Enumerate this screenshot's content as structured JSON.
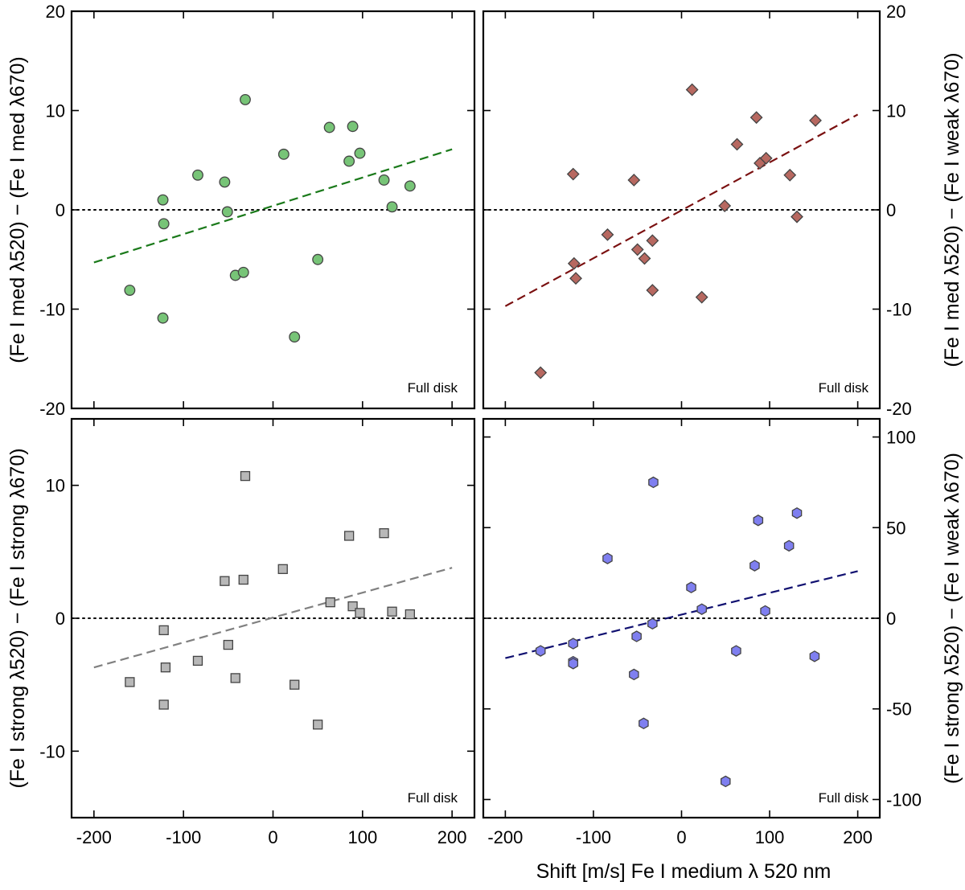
{
  "chart_data": [
    {
      "type": "scatter",
      "panel": "top-left",
      "ylabel": "(Fe I med λ520) − (Fe I med λ670)",
      "xlim": [
        -225,
        225
      ],
      "ylim": [
        -20,
        20
      ],
      "xticks": [
        -200,
        -100,
        0,
        100,
        200
      ],
      "yticks": [
        -20,
        -10,
        0,
        10,
        20
      ],
      "ytick_labels": [
        "-20",
        "-10",
        "0",
        "10",
        "20"
      ],
      "annotation": "Full disk",
      "marker": "circle",
      "color": "#77c477",
      "line_color": "#1b7a1b",
      "points": [
        {
          "x": -160,
          "y": -8.1
        },
        {
          "x": -123,
          "y": 1.0
        },
        {
          "x": -122,
          "y": -1.4
        },
        {
          "x": -123,
          "y": -10.9
        },
        {
          "x": -84,
          "y": 3.5
        },
        {
          "x": -54,
          "y": 2.8
        },
        {
          "x": -51,
          "y": -0.2
        },
        {
          "x": -42,
          "y": -6.6
        },
        {
          "x": -33,
          "y": -6.3
        },
        {
          "x": -31,
          "y": 11.1
        },
        {
          "x": 12,
          "y": 5.6
        },
        {
          "x": 24,
          "y": -12.8
        },
        {
          "x": 50,
          "y": -5.0
        },
        {
          "x": 63,
          "y": 8.3
        },
        {
          "x": 85,
          "y": 4.9
        },
        {
          "x": 89,
          "y": 8.4
        },
        {
          "x": 97,
          "y": 5.7
        },
        {
          "x": 124,
          "y": 3.0
        },
        {
          "x": 133,
          "y": 0.3
        },
        {
          "x": 153,
          "y": 2.4
        }
      ],
      "fit": {
        "x": [
          -200,
          200
        ],
        "y": [
          -5.3,
          6.1
        ]
      }
    },
    {
      "type": "scatter",
      "panel": "top-right",
      "ylabel": "(Fe I med λ520) − (Fe I weak λ670)",
      "xlim": [
        -225,
        225
      ],
      "ylim": [
        -20,
        20
      ],
      "xticks": [
        -200,
        -100,
        0,
        100,
        200
      ],
      "yticks": [
        -20,
        -10,
        0,
        10,
        20
      ],
      "ytick_labels": [
        "-20",
        "-10",
        "0",
        "10",
        "20"
      ],
      "annotation": "Full disk",
      "marker": "diamond",
      "color": "#b76860",
      "line_color": "#7a1010",
      "points": [
        {
          "x": -160,
          "y": -16.4
        },
        {
          "x": -123,
          "y": 3.6
        },
        {
          "x": -122,
          "y": -5.4
        },
        {
          "x": -120,
          "y": -6.9
        },
        {
          "x": -84,
          "y": -2.5
        },
        {
          "x": -54,
          "y": 3.0
        },
        {
          "x": -50,
          "y": -4.0
        },
        {
          "x": -42,
          "y": -4.9
        },
        {
          "x": -33,
          "y": -3.1
        },
        {
          "x": -33,
          "y": -8.1
        },
        {
          "x": 12,
          "y": 12.1
        },
        {
          "x": 23,
          "y": -8.8
        },
        {
          "x": 49,
          "y": 0.4
        },
        {
          "x": 63,
          "y": 6.6
        },
        {
          "x": 85,
          "y": 9.3
        },
        {
          "x": 89,
          "y": 4.7
        },
        {
          "x": 96,
          "y": 5.2
        },
        {
          "x": 123,
          "y": 3.5
        },
        {
          "x": 131,
          "y": -0.7
        },
        {
          "x": 152,
          "y": 9.0
        }
      ],
      "fit": {
        "x": [
          -200,
          200
        ],
        "y": [
          -9.7,
          9.6
        ]
      }
    },
    {
      "type": "scatter",
      "panel": "bottom-left",
      "ylabel": "(Fe I strong λ520) − (Fe I strong λ670)",
      "xlim": [
        -225,
        225
      ],
      "ylim": [
        -15,
        15
      ],
      "xticks": [
        -200,
        -100,
        0,
        100,
        200
      ],
      "xtick_labels": [
        "-200",
        "-100",
        "0",
        "100",
        "200"
      ],
      "yticks": [
        -10,
        0,
        10
      ],
      "ytick_labels": [
        "-10",
        "0",
        "10"
      ],
      "annotation": "Full disk",
      "marker": "square",
      "color": "#b8b8b8",
      "line_color": "#808080",
      "points": [
        {
          "x": -160,
          "y": -4.8
        },
        {
          "x": -122,
          "y": -0.9
        },
        {
          "x": -120,
          "y": -3.7
        },
        {
          "x": -122,
          "y": -6.5
        },
        {
          "x": -84,
          "y": -3.2
        },
        {
          "x": -54,
          "y": 2.8
        },
        {
          "x": -50,
          "y": -2.0
        },
        {
          "x": -42,
          "y": -4.5
        },
        {
          "x": -33,
          "y": 2.9
        },
        {
          "x": -31,
          "y": 10.7
        },
        {
          "x": 11,
          "y": 3.7
        },
        {
          "x": 24,
          "y": -5.0
        },
        {
          "x": 50,
          "y": -8.0
        },
        {
          "x": 64,
          "y": 1.2
        },
        {
          "x": 85,
          "y": 6.2
        },
        {
          "x": 89,
          "y": 0.9
        },
        {
          "x": 97,
          "y": 0.4
        },
        {
          "x": 124,
          "y": 6.4
        },
        {
          "x": 133,
          "y": 0.5
        },
        {
          "x": 153,
          "y": 0.3
        }
      ],
      "fit": {
        "x": [
          -200,
          200
        ],
        "y": [
          -3.7,
          3.8
        ]
      }
    },
    {
      "type": "scatter",
      "panel": "bottom-right",
      "ylabel": "(Fe I strong λ520) − (Fe I weak λ670)",
      "xlabel": "Shift [m/s] Fe I medium  λ 520 nm",
      "xlim": [
        -225,
        225
      ],
      "ylim": [
        -110,
        110
      ],
      "xticks": [
        -200,
        -100,
        0,
        100,
        200
      ],
      "xtick_labels": [
        "-200",
        "-100",
        "0",
        "100",
        "200"
      ],
      "yticks": [
        -100,
        -50,
        0,
        50,
        100
      ],
      "ytick_labels": [
        "-100",
        "-50",
        "0",
        "50",
        "100"
      ],
      "annotation": "Full disk",
      "marker": "hexagon",
      "color": "#7f7ff0",
      "line_color": "#101070",
      "points": [
        {
          "x": -160,
          "y": -18
        },
        {
          "x": -123,
          "y": -14
        },
        {
          "x": -123,
          "y": -24
        },
        {
          "x": -123,
          "y": -25
        },
        {
          "x": -84,
          "y": 33
        },
        {
          "x": -54,
          "y": -31
        },
        {
          "x": -51,
          "y": -10
        },
        {
          "x": -43,
          "y": -58
        },
        {
          "x": -33,
          "y": -3
        },
        {
          "x": -32,
          "y": 75
        },
        {
          "x": 11,
          "y": 17
        },
        {
          "x": 23,
          "y": 5
        },
        {
          "x": 50,
          "y": -90
        },
        {
          "x": 62,
          "y": -18
        },
        {
          "x": 83,
          "y": 29
        },
        {
          "x": 87,
          "y": 54
        },
        {
          "x": 95,
          "y": 4
        },
        {
          "x": 122,
          "y": 40
        },
        {
          "x": 131,
          "y": 58
        },
        {
          "x": 151,
          "y": -21
        }
      ],
      "fit": {
        "x": [
          -200,
          200
        ],
        "y": [
          -22,
          26
        ]
      }
    }
  ]
}
